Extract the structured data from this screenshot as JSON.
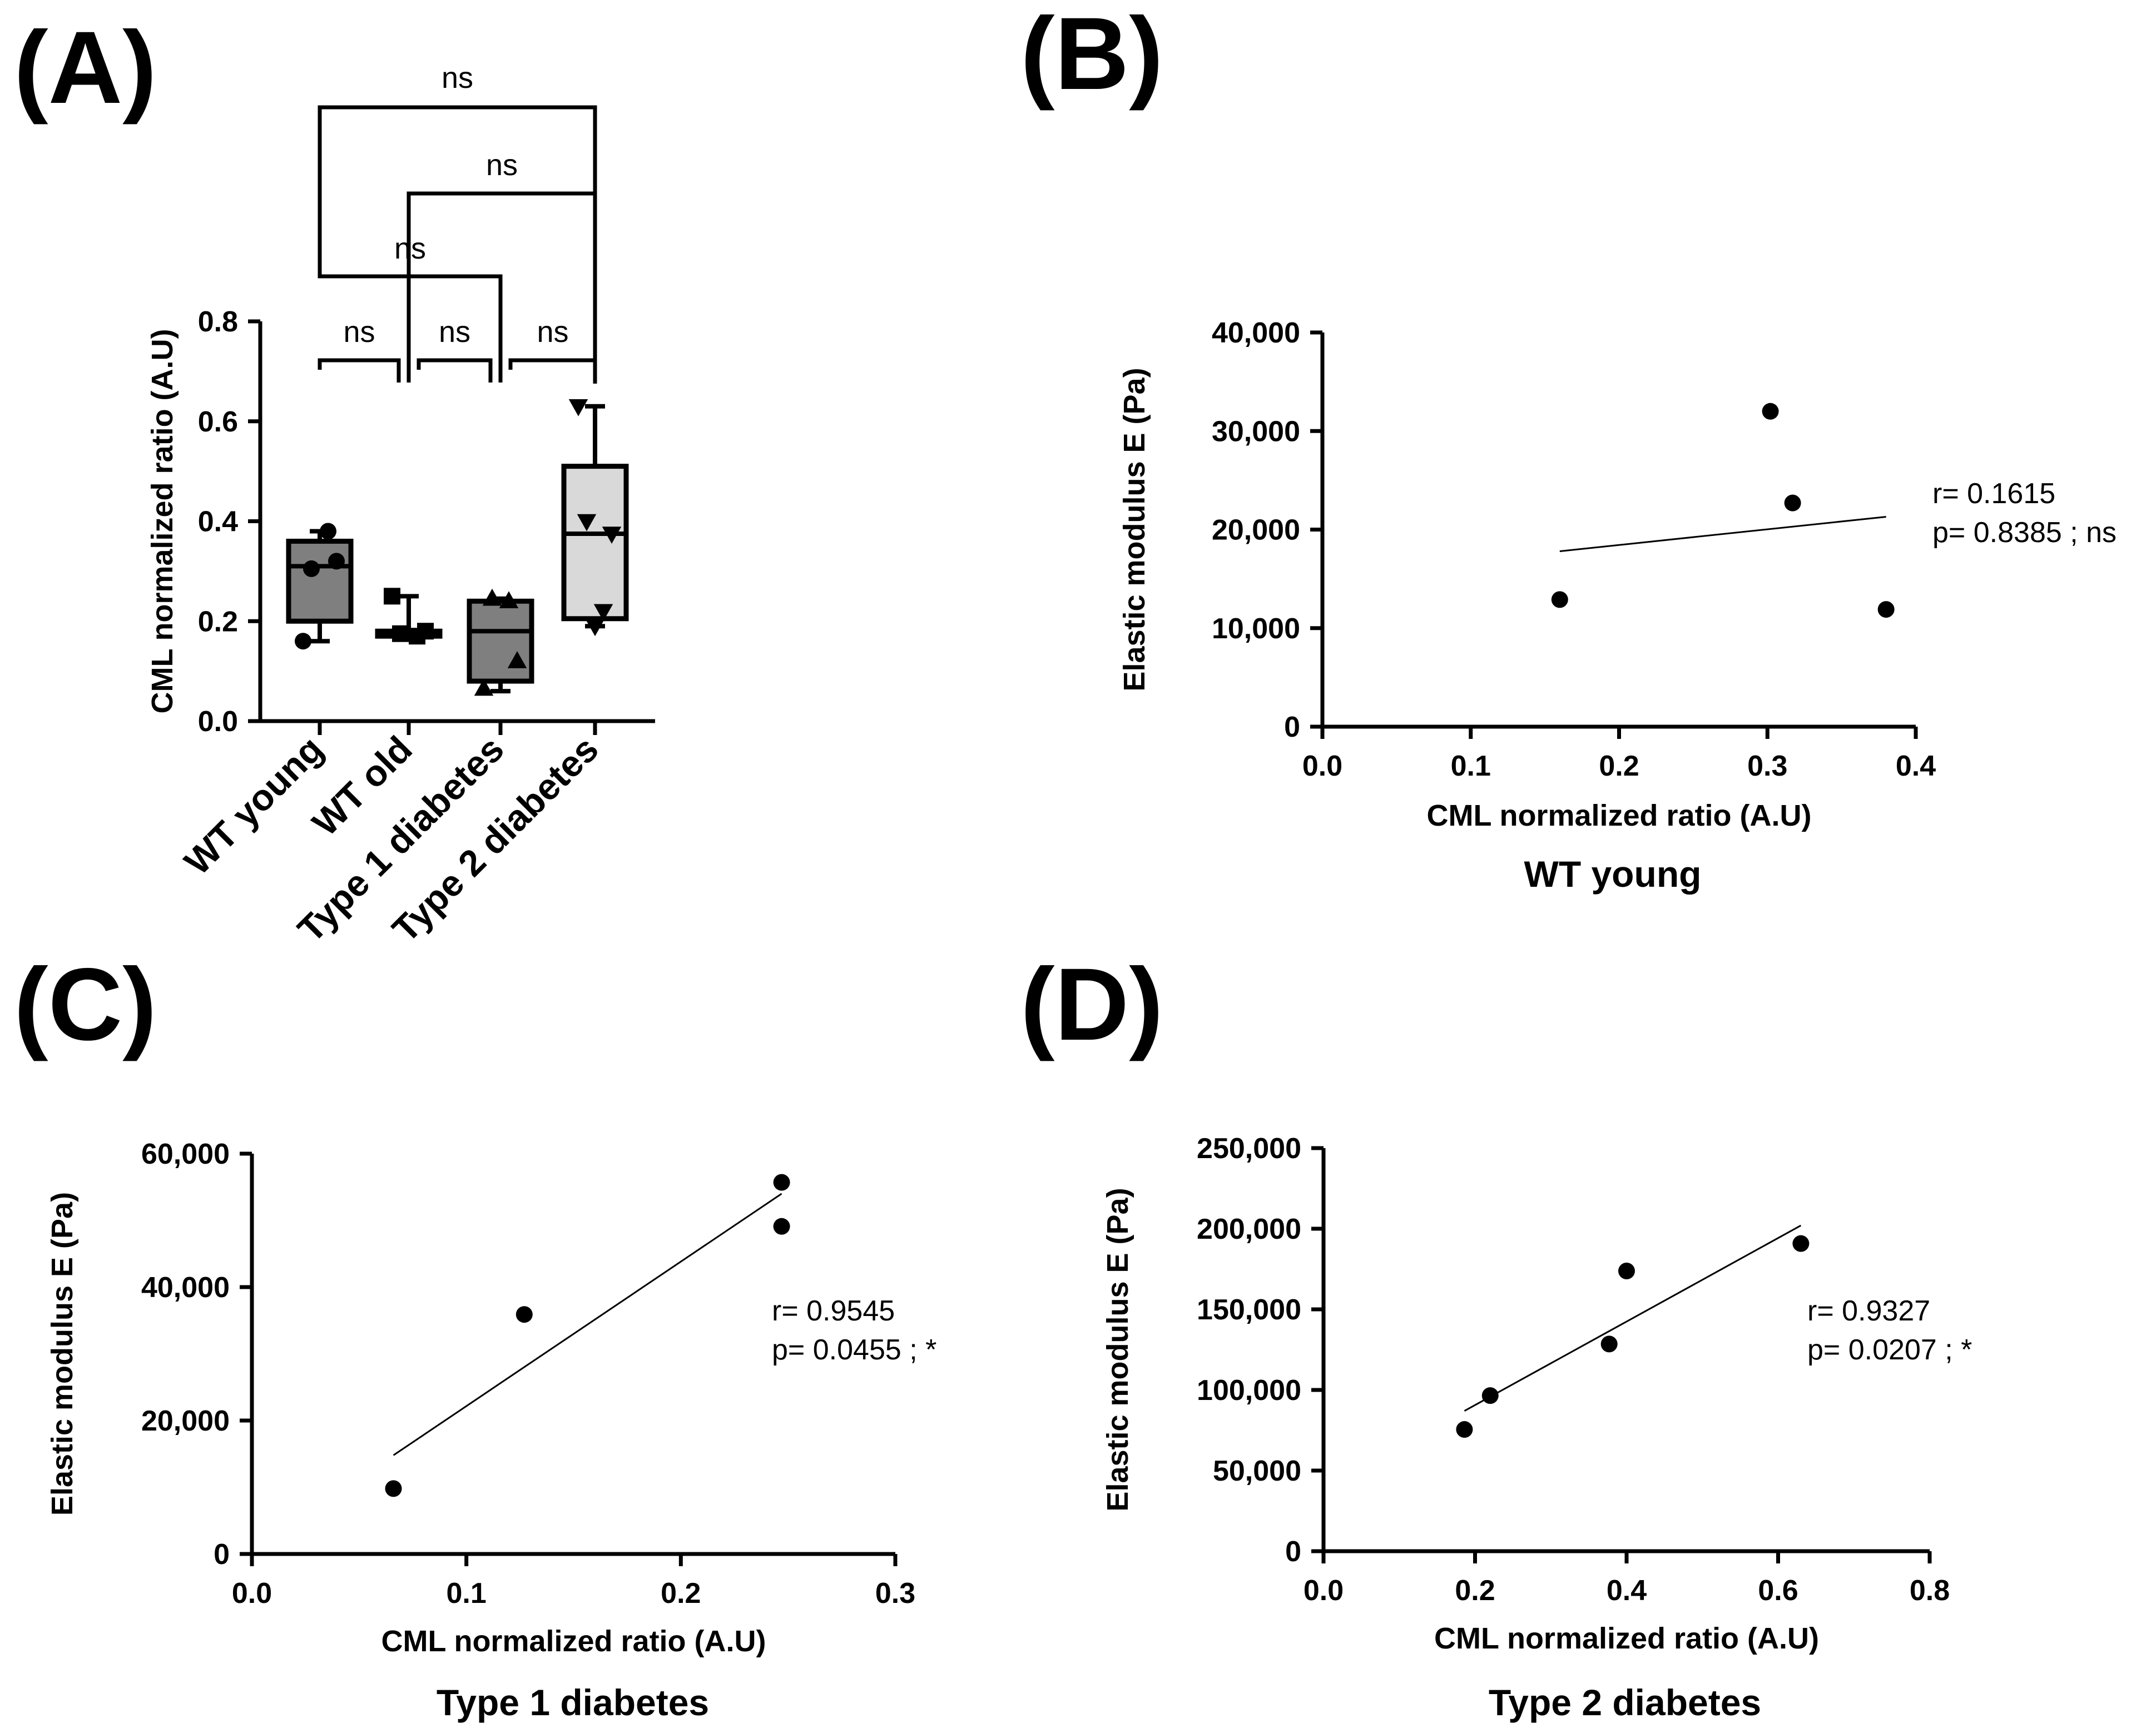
{
  "figure": {
    "panels": [
      "(A)",
      "(B)",
      "(C)",
      "(D)"
    ]
  },
  "chart_data": [
    {
      "id": "A",
      "type": "box",
      "title": "",
      "ylabel": "CML normalized ratio (A.U)",
      "ylim": [
        0,
        0.8
      ],
      "yticks": [
        "0.0",
        "0.2",
        "0.4",
        "0.6",
        "0.8"
      ],
      "categories": [
        "WT young",
        "WT old",
        "Type 1 diabetes",
        "Type 2 diabetes"
      ],
      "colors": [
        "#7f7f7f",
        "#ffffff",
        "#7f7f7f",
        "#d9d9d9"
      ],
      "boxes": [
        {
          "min": 0.16,
          "q1": 0.2,
          "median": 0.31,
          "q3": 0.36,
          "max": 0.38,
          "points": [
            0.16,
            0.32,
            0.305,
            0.38
          ],
          "marker": "circle"
        },
        {
          "min": 0.17,
          "q1": 0.17,
          "median": 0.18,
          "q3": 0.18,
          "max": 0.25,
          "points": [
            0.25,
            0.18,
            0.175,
            0.17
          ],
          "marker": "square"
        },
        {
          "min": 0.06,
          "q1": 0.08,
          "median": 0.18,
          "q3": 0.24,
          "max": 0.245,
          "points": [
            0.065,
            0.12,
            0.245,
            0.24
          ],
          "marker": "triangle"
        },
        {
          "min": 0.19,
          "q1": 0.205,
          "median": 0.375,
          "q3": 0.51,
          "max": 0.63,
          "points": [
            0.63,
            0.375,
            0.4,
            0.22,
            0.19
          ],
          "marker": "triangle-down"
        }
      ],
      "comparisons": [
        {
          "from": 0,
          "to": 3,
          "label": "ns"
        },
        {
          "from": 1,
          "to": 3,
          "label": "ns"
        },
        {
          "from": 0,
          "to": 2,
          "label": "ns"
        },
        {
          "from": 0,
          "to": 1,
          "label": "ns"
        },
        {
          "from": 1,
          "to": 2,
          "label": "ns"
        },
        {
          "from": 2,
          "to": 3,
          "label": "ns"
        }
      ]
    },
    {
      "id": "B",
      "type": "scatter",
      "subtitle": "WT young",
      "xlabel": "CML normalized ratio (A.U)",
      "ylabel": "Elastic modulus E (Pa)",
      "xlim": [
        0,
        0.4
      ],
      "ylim": [
        0,
        40000
      ],
      "xticks": [
        "0.0",
        "0.1",
        "0.2",
        "0.3",
        "0.4"
      ],
      "yticks": [
        "0",
        "10,000",
        "20,000",
        "30,000",
        "40,000"
      ],
      "x": [
        0.16,
        0.302,
        0.317,
        0.38
      ],
      "y": [
        12900,
        32000,
        22700,
        11900
      ],
      "fit": {
        "x": [
          0.16,
          0.38
        ],
        "y": [
          17800,
          21300
        ]
      },
      "r_text": "r= 0.1615",
      "p_text": "p= 0.8385 ; ns"
    },
    {
      "id": "C",
      "type": "scatter",
      "subtitle": "Type 1 diabetes",
      "xlabel": "CML normalized ratio (A.U)",
      "ylabel": "Elastic modulus E (Pa)",
      "xlim": [
        0,
        0.3
      ],
      "ylim": [
        0,
        60000
      ],
      "xticks": [
        "0.0",
        "0.1",
        "0.2",
        "0.3"
      ],
      "yticks": [
        "0",
        "20,000",
        "40,000",
        "60,000"
      ],
      "x": [
        0.066,
        0.127,
        0.247,
        0.247
      ],
      "y": [
        9800,
        35900,
        55700,
        49100
      ],
      "fit": {
        "x": [
          0.066,
          0.247
        ],
        "y": [
          14800,
          54000
        ]
      },
      "r_text": "r= 0.9545",
      "p_text": "p= 0.0455 ; *"
    },
    {
      "id": "D",
      "type": "scatter",
      "subtitle": "Type 2 diabetes",
      "xlabel": "CML normalized ratio (A.U)",
      "ylabel": "Elastic modulus E (Pa)",
      "xlim": [
        0,
        0.8
      ],
      "ylim": [
        0,
        250000
      ],
      "xticks": [
        "0.0",
        "0.2",
        "0.4",
        "0.6",
        "0.8"
      ],
      "yticks": [
        "0",
        "50,000",
        "100,000",
        "150,000",
        "200,000",
        "250,000"
      ],
      "x": [
        0.186,
        0.22,
        0.377,
        0.4,
        0.63
      ],
      "y": [
        75500,
        96500,
        128500,
        173800,
        190800
      ],
      "fit": {
        "x": [
          0.186,
          0.63
        ],
        "y": [
          87000,
          202000
        ]
      },
      "r_text": "r= 0.9327",
      "p_text": "p= 0.0207 ; *"
    }
  ]
}
